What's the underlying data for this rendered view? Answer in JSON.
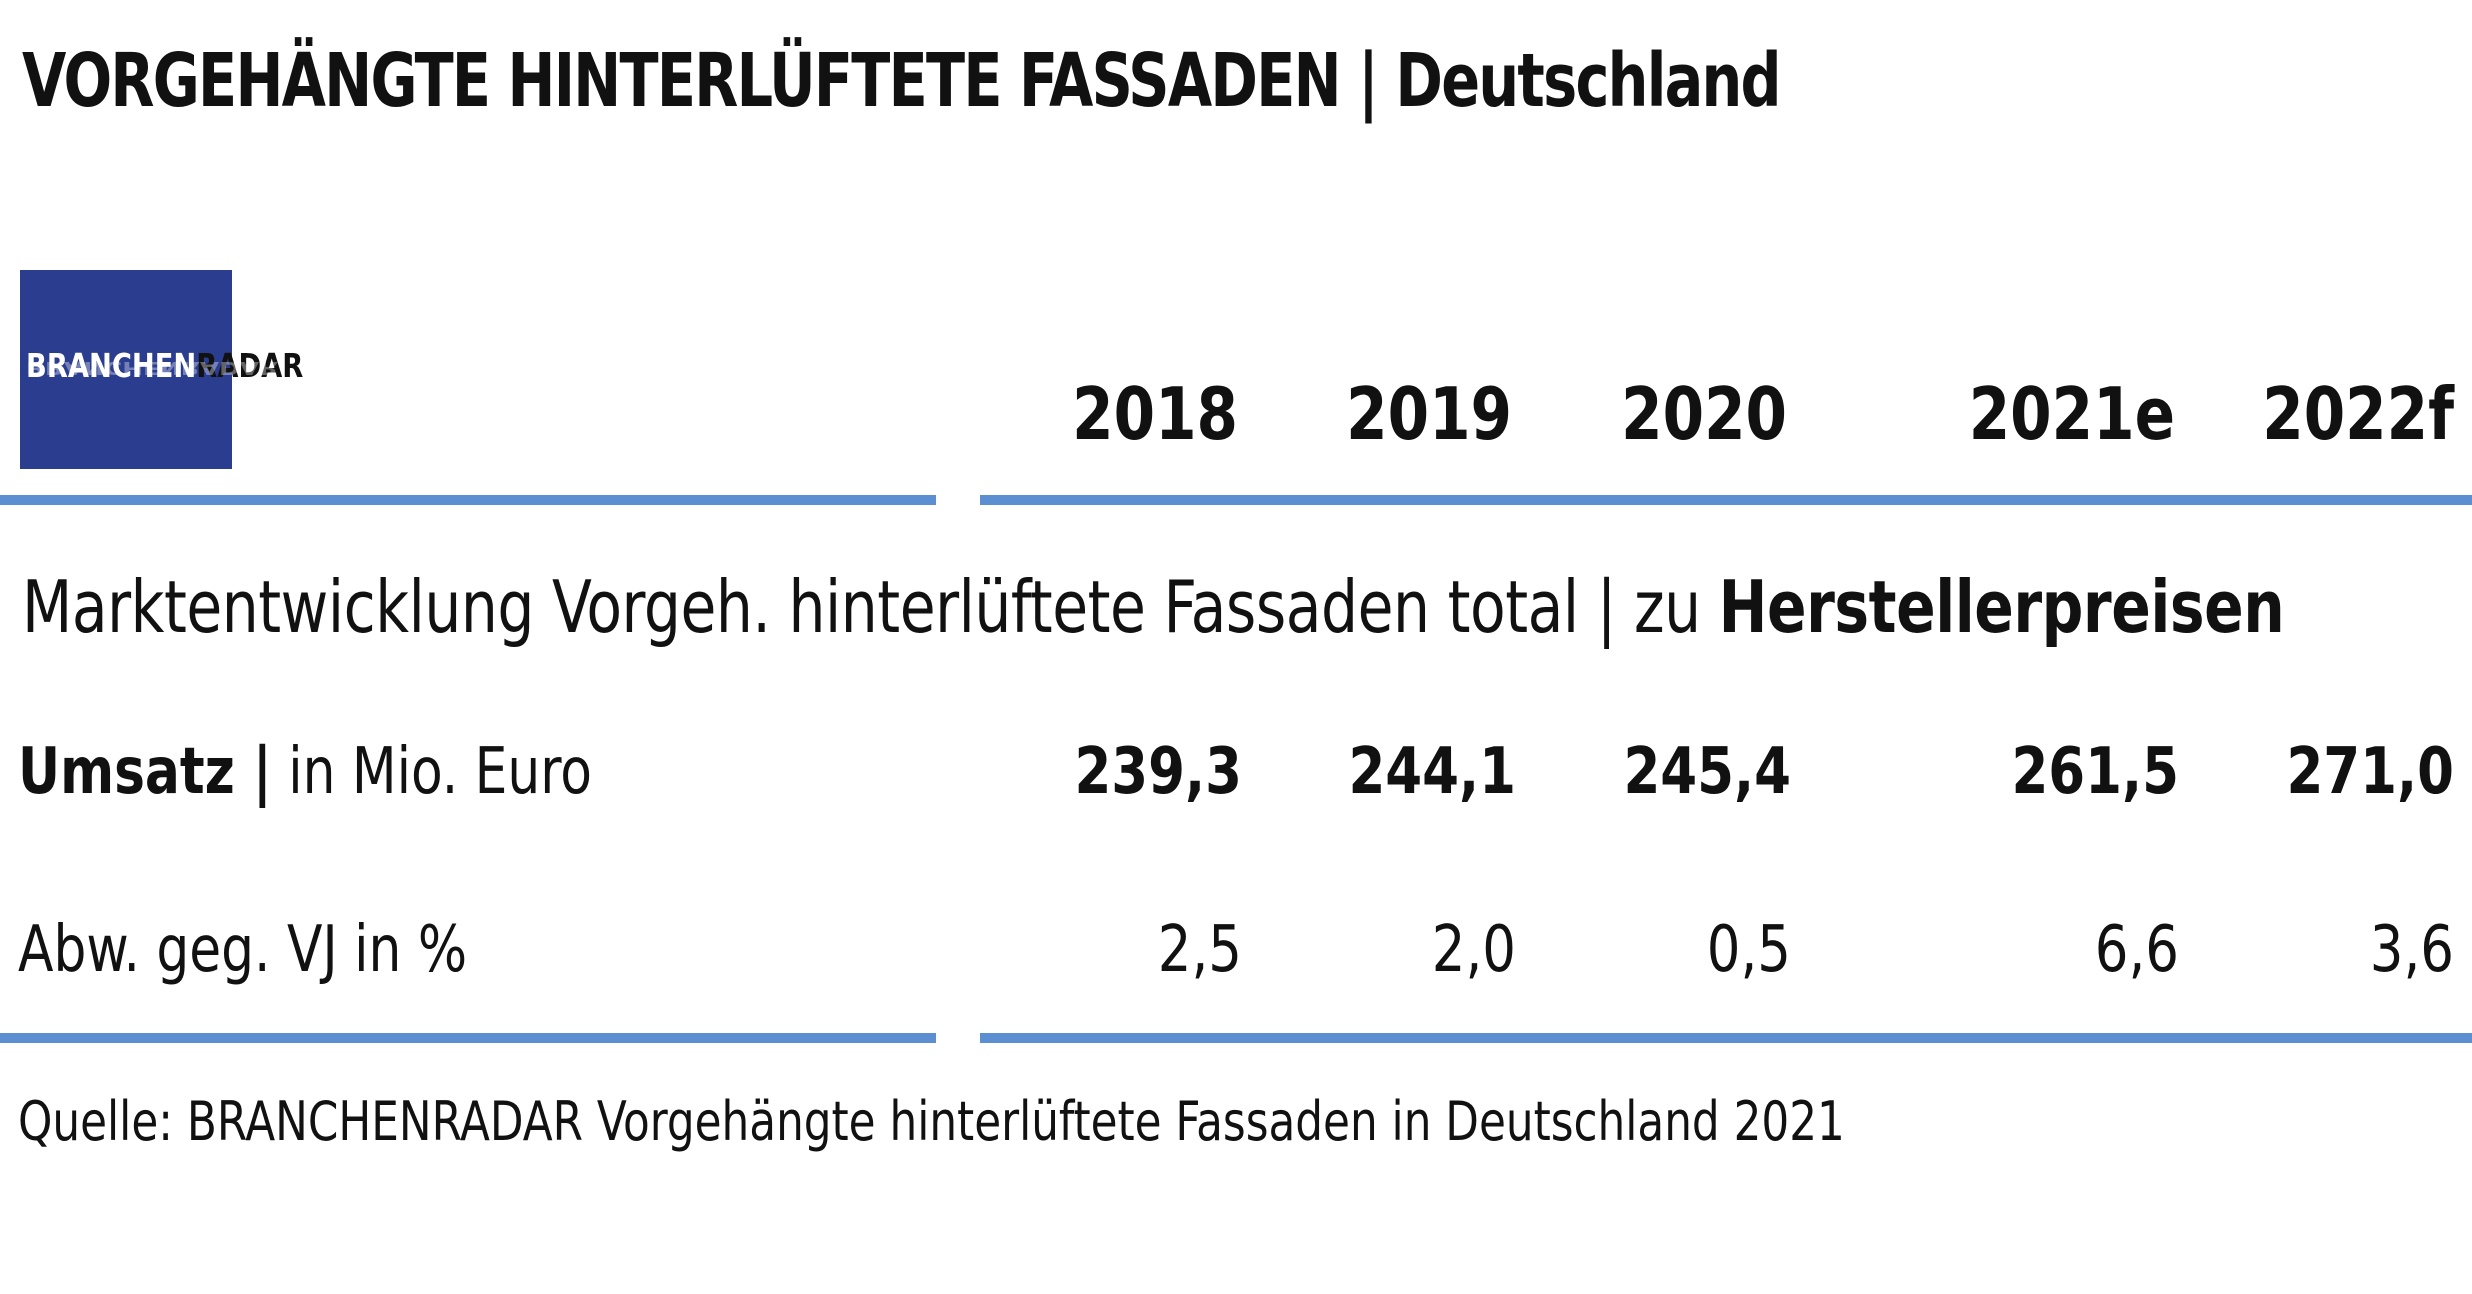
{
  "title": "VORGEHÄNGTE HINTERLÜFTETE FASSADEN | Deutschland",
  "logo": {
    "part1": "BRANCHEN",
    "part2": "RADAR",
    "reflection": "BRANCHENRADAR"
  },
  "subtitle": {
    "normal": "Marktentwicklung Vorgeh. hinterlüftete Fassaden total | zu ",
    "bold": "Herstellerpreisen"
  },
  "rows": {
    "umsatz": {
      "label_bold": "Umsatz |",
      "label_rest": " in Mio. Euro"
    },
    "abw": {
      "label": "Abw. geg. VJ in %"
    }
  },
  "source": "Quelle: BRANCHENRADAR Vorgehängte hinterlüftete Fassaden in Deutschland 2021",
  "colors": {
    "rule": "#5b8fd1",
    "logo_bg": "#2a3d8f"
  },
  "chart_data": {
    "type": "table",
    "columns": [
      "2018",
      "2019",
      "2020",
      "2021e",
      "2022f"
    ],
    "rows": [
      {
        "name": "Umsatz | in Mio. Euro",
        "values": [
          "239,3",
          "244,1",
          "245,4",
          "261,5",
          "271,0"
        ]
      },
      {
        "name": "Abw. geg. VJ in %",
        "values": [
          "2,5",
          "2,0",
          "0,5",
          "6,6",
          "3,6"
        ]
      }
    ]
  }
}
